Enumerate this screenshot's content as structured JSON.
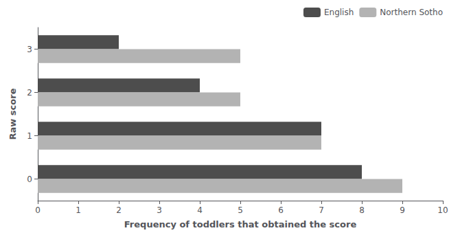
{
  "chart_data": {
    "type": "bar",
    "orientation": "horizontal",
    "categories": [
      0,
      1,
      2,
      3
    ],
    "series": [
      {
        "name": "English",
        "color": "#4d4d4d",
        "values": [
          8,
          7,
          4,
          2
        ]
      },
      {
        "name": "Northern Sotho",
        "color": "#b3b3b3",
        "values": [
          9,
          7,
          5,
          5
        ]
      }
    ],
    "xlabel": "Frequency of toddlers that obtained the score",
    "ylabel": "Raw score",
    "xlim": [
      0,
      10
    ],
    "xticks": [
      0,
      1,
      2,
      3,
      4,
      5,
      6,
      7,
      8,
      9,
      10
    ],
    "grid": false,
    "legend": "upper right"
  }
}
